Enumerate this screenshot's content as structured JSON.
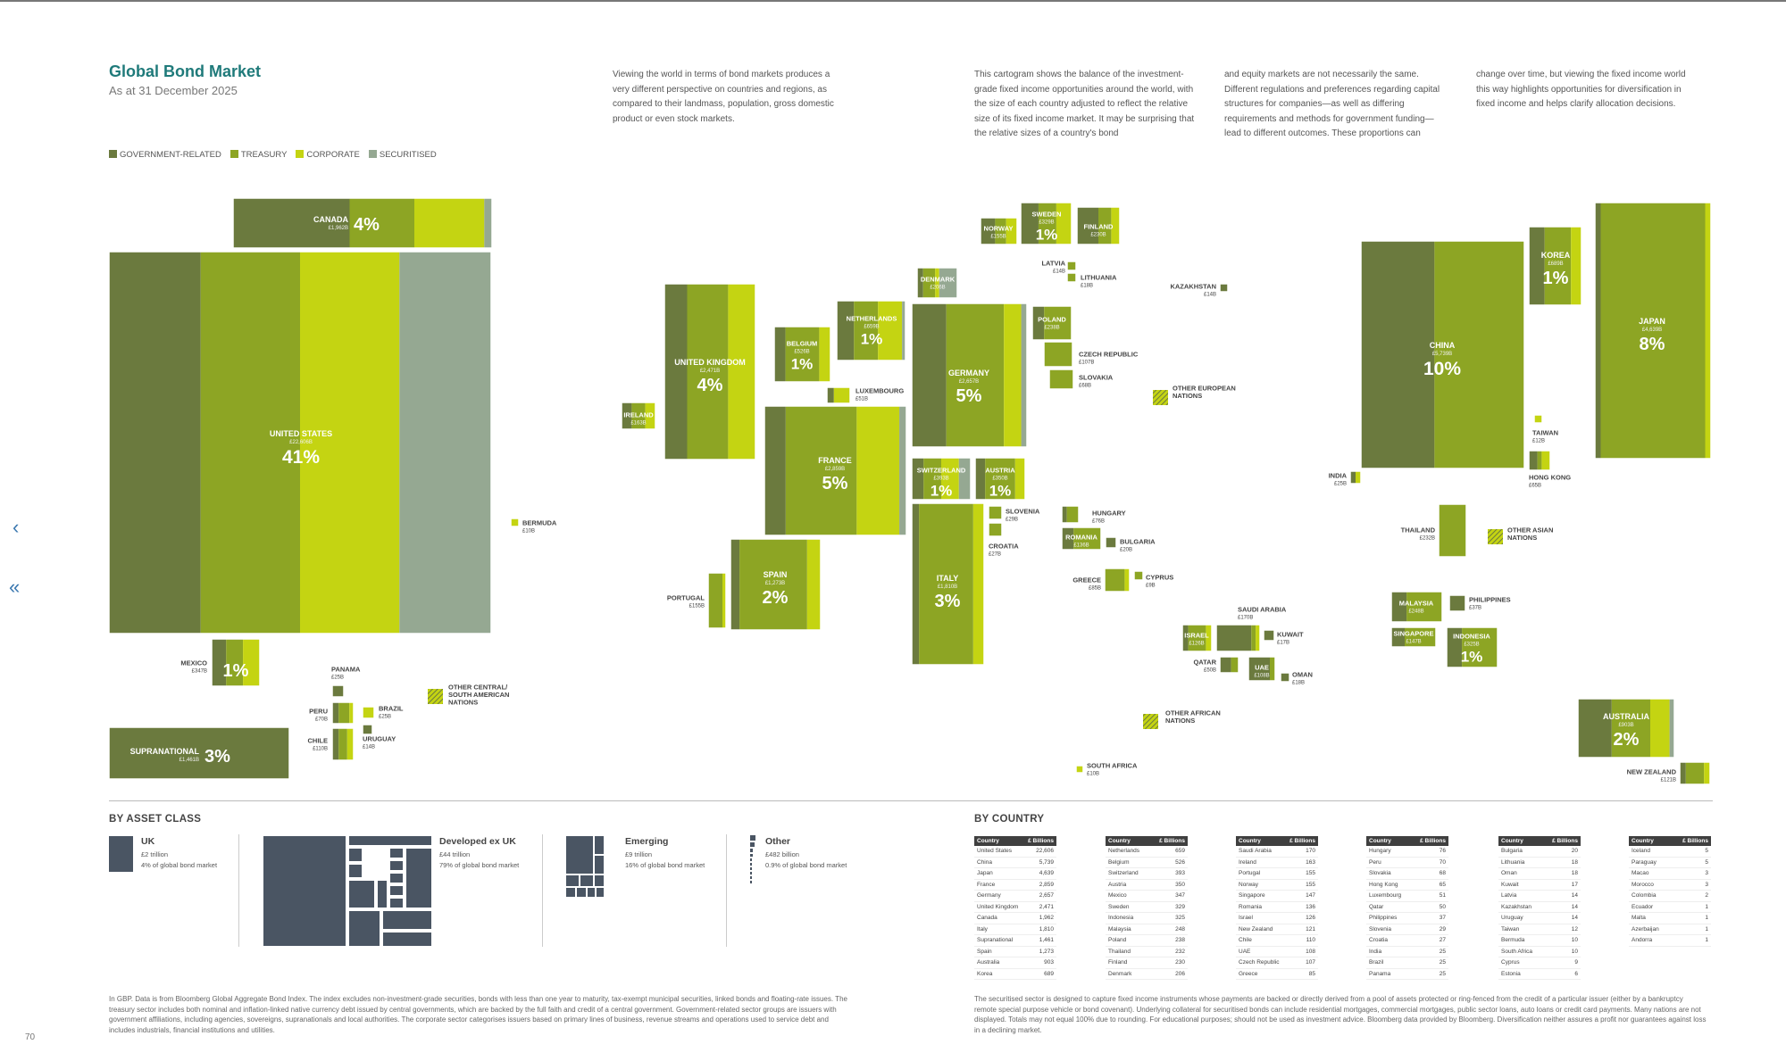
{
  "page": {
    "title": "Global Bond Market",
    "subtitle": "As at 31 December 2025",
    "intro": [
      "Viewing the world in terms of bond markets produces a very different perspective on countries and regions, as compared to their landmass, population, gross domestic product or even stock markets.",
      "This cartogram shows the balance of the investment-grade fixed income opportunities around the world, with the size of each country adjusted to reflect the relative size of its fixed income market. It may be surprising that the relative sizes of a country's bond",
      "and equity markets are not necessarily the same. Different regulations and preferences regarding capital structures for companies—as well as differing requirements and methods for government funding—lead to different outcomes. These proportions can",
      "change over time, but viewing the fixed income world this way highlights opportunities for diversification in fixed income and helps clarify allocation decisions."
    ],
    "legend": [
      {
        "label": "GOVERNMENT-RELATED",
        "color": "#6b7a3e"
      },
      {
        "label": "TREASURY",
        "color": "#8da524"
      },
      {
        "label": "CORPORATE",
        "color": "#c4d412"
      },
      {
        "label": "SECURITISED",
        "color": "#95a892"
      }
    ],
    "by_asset_class_heading": "BY ASSET CLASS",
    "by_country_heading": "BY COUNTRY",
    "page_number": "70",
    "footnote_left": "In GBP. Data is from Bloomberg Global Aggregate Bond Index. The index excludes non-investment-grade securities, bonds with less than one year to maturity, tax-exempt municipal securities, linked bonds and floating-rate issues. The treasury sector includes both nominal and inflation-linked native currency debt issued by central governments, which are backed by the full faith and credit of a central government. Government-related sector groups are issuers with government affiliations, including agencies, sovereigns, supranationals and local authorities. The corporate sector categorises issuers based on primary lines of business, revenue streams and operations used to service debt and includes industrials, financial institutions and utilities.",
    "footnote_right": "The securitised sector is designed to capture fixed income instruments whose payments are backed or directly derived from a pool of assets protected or ring-fenced from the credit of a particular issuer (either by a bankruptcy remote special purpose vehicle or bond covenant). Underlying collateral for securitised bonds can include residential mortgages, commercial mortgages, public sector loans, auto loans or credit card payments. Many nations are not displayed. Totals may not equal 100% due to rounding. For educational purposes; should not be used as investment advice. Bloomberg data provided by Bloomberg. Diversification neither assures a profit nor guarantees against loss in a declining market."
  },
  "asset_classes": [
    {
      "name": "UK",
      "lines": [
        "£2 trillion",
        "4% of global bond market"
      ]
    },
    {
      "name": "Developed ex UK",
      "lines": [
        "£44 trillion",
        "79% of global bond market"
      ]
    },
    {
      "name": "Emerging",
      "lines": [
        "£9 trillion",
        "16% of global bond market"
      ]
    },
    {
      "name": "Other",
      "lines": [
        "£482 billion",
        "0.9% of global bond market"
      ]
    }
  ],
  "table_headers": {
    "country": "Country",
    "value": "£ Billions"
  },
  "country_tables": [
    [
      [
        "United States",
        "22,606"
      ],
      [
        "China",
        "5,739"
      ],
      [
        "Japan",
        "4,639"
      ],
      [
        "France",
        "2,859"
      ],
      [
        "Germany",
        "2,657"
      ],
      [
        "United Kingdom",
        "2,471"
      ],
      [
        "Canada",
        "1,962"
      ],
      [
        "Italy",
        "1,810"
      ],
      [
        "Supranational",
        "1,461"
      ],
      [
        "Spain",
        "1,273"
      ],
      [
        "Australia",
        "903"
      ],
      [
        "Korea",
        "689"
      ]
    ],
    [
      [
        "Netherlands",
        "659"
      ],
      [
        "Belgium",
        "526"
      ],
      [
        "Switzerland",
        "393"
      ],
      [
        "Austria",
        "350"
      ],
      [
        "Mexico",
        "347"
      ],
      [
        "Sweden",
        "329"
      ],
      [
        "Indonesia",
        "325"
      ],
      [
        "Malaysia",
        "248"
      ],
      [
        "Poland",
        "238"
      ],
      [
        "Thailand",
        "232"
      ],
      [
        "Finland",
        "230"
      ],
      [
        "Denmark",
        "206"
      ]
    ],
    [
      [
        "Saudi Arabia",
        "170"
      ],
      [
        "Ireland",
        "163"
      ],
      [
        "Portugal",
        "155"
      ],
      [
        "Norway",
        "155"
      ],
      [
        "Singapore",
        "147"
      ],
      [
        "Romania",
        "136"
      ],
      [
        "Israel",
        "126"
      ],
      [
        "New Zealand",
        "121"
      ],
      [
        "Chile",
        "110"
      ],
      [
        "UAE",
        "108"
      ],
      [
        "Czech Republic",
        "107"
      ],
      [
        "Greece",
        "85"
      ]
    ],
    [
      [
        "Hungary",
        "76"
      ],
      [
        "Peru",
        "70"
      ],
      [
        "Slovakia",
        "68"
      ],
      [
        "Hong Kong",
        "65"
      ],
      [
        "Luxembourg",
        "51"
      ],
      [
        "Qatar",
        "50"
      ],
      [
        "Philippines",
        "37"
      ],
      [
        "Slovenia",
        "29"
      ],
      [
        "Croatia",
        "27"
      ],
      [
        "India",
        "25"
      ],
      [
        "Brazil",
        "25"
      ],
      [
        "Panama",
        "25"
      ]
    ],
    [
      [
        "Bulgaria",
        "20"
      ],
      [
        "Lithuania",
        "18"
      ],
      [
        "Oman",
        "18"
      ],
      [
        "Kuwait",
        "17"
      ],
      [
        "Latvia",
        "14"
      ],
      [
        "Kazakhstan",
        "14"
      ],
      [
        "Uruguay",
        "14"
      ],
      [
        "Taiwan",
        "12"
      ],
      [
        "Bermuda",
        "10"
      ],
      [
        "South Africa",
        "10"
      ],
      [
        "Cyprus",
        "9"
      ],
      [
        "Estonia",
        "6"
      ]
    ],
    [
      [
        "Iceland",
        "5"
      ],
      [
        "Paraguay",
        "5"
      ],
      [
        "Macao",
        "3"
      ],
      [
        "Morocco",
        "3"
      ],
      [
        "Colombia",
        "2"
      ],
      [
        "Ecuador",
        "1"
      ],
      [
        "Malta",
        "1"
      ],
      [
        "Azerbaijan",
        "1"
      ],
      [
        "Andorra",
        "1"
      ]
    ]
  ],
  "chart_data": {
    "type": "treemap-cartogram",
    "unit": "£ billions",
    "legend": [
      "GOVERNMENT-RELATED",
      "TREASURY",
      "CORPORATE",
      "SECURITISED"
    ],
    "countries": [
      {
        "name": "UNITED STATES",
        "value_label": "£22,606B",
        "pct": "41%",
        "composition": [
          0.24,
          0.26,
          0.26,
          0.24
        ]
      },
      {
        "name": "CANADA",
        "value_label": "£1,962B",
        "pct": "4%",
        "composition": [
          0.45,
          0.25,
          0.27,
          0.03
        ]
      },
      {
        "name": "MEXICO",
        "value_label": "£347B",
        "pct": "1%",
        "composition": [
          0.3,
          0.35,
          0.35,
          0
        ]
      },
      {
        "name": "SUPRANATIONAL",
        "value_label": "£1,461B",
        "pct": "3%",
        "composition": [
          1,
          0,
          0,
          0
        ]
      },
      {
        "name": "BERMUDA",
        "value_label": "£10B",
        "pct": "",
        "composition": [
          0,
          0,
          1,
          0
        ]
      },
      {
        "name": "PANAMA",
        "value_label": "£25B",
        "pct": "",
        "composition": [
          1,
          0,
          0,
          0
        ]
      },
      {
        "name": "PERU",
        "value_label": "£70B",
        "pct": "",
        "composition": [
          0.3,
          0.5,
          0.2,
          0
        ]
      },
      {
        "name": "BRAZIL",
        "value_label": "£25B",
        "pct": "",
        "composition": [
          0,
          0,
          1,
          0
        ]
      },
      {
        "name": "CHILE",
        "value_label": "£110B",
        "pct": "",
        "composition": [
          0.3,
          0.4,
          0.3,
          0
        ]
      },
      {
        "name": "URUGUAY",
        "value_label": "£14B",
        "pct": "",
        "composition": [
          1,
          0,
          0,
          0
        ]
      },
      {
        "name": "OTHER CENTRAL/ SOUTH AMERICAN NATIONS",
        "value_label": "",
        "pct": "",
        "composition": []
      },
      {
        "name": "UNITED KINGDOM",
        "value_label": "£2,471B",
        "pct": "4%",
        "composition": [
          0.25,
          0.45,
          0.3,
          0
        ]
      },
      {
        "name": "IRELAND",
        "value_label": "£163B",
        "pct": "",
        "composition": [
          0.3,
          0.4,
          0.3,
          0
        ]
      },
      {
        "name": "BELGIUM",
        "value_label": "£526B",
        "pct": "1%",
        "composition": [
          0.2,
          0.6,
          0.2,
          0
        ]
      },
      {
        "name": "NETHERLANDS",
        "value_label": "£659B",
        "pct": "1%",
        "composition": [
          0.25,
          0.35,
          0.35,
          0.05
        ]
      },
      {
        "name": "LUXEMBOURG",
        "value_label": "£51B",
        "pct": "",
        "composition": [
          0.3,
          0,
          0.7,
          0
        ]
      },
      {
        "name": "FRANCE",
        "value_label": "£2,859B",
        "pct": "5%",
        "composition": [
          0.15,
          0.5,
          0.3,
          0.05
        ]
      },
      {
        "name": "SPAIN",
        "value_label": "£1,273B",
        "pct": "2%",
        "composition": [
          0.1,
          0.75,
          0.15,
          0
        ]
      },
      {
        "name": "PORTUGAL",
        "value_label": "£155B",
        "pct": "",
        "composition": [
          0,
          0.8,
          0.2,
          0
        ]
      },
      {
        "name": "DENMARK",
        "value_label": "£206B",
        "pct": "",
        "composition": [
          0.15,
          0.3,
          0.1,
          0.45
        ]
      },
      {
        "name": "NORWAY",
        "value_label": "£155B",
        "pct": "",
        "composition": [
          0.4,
          0.3,
          0.3,
          0
        ]
      },
      {
        "name": "SWEDEN",
        "value_label": "£329B",
        "pct": "1%",
        "composition": [
          0.35,
          0.35,
          0.3,
          0
        ]
      },
      {
        "name": "FINLAND",
        "value_label": "£230B",
        "pct": "",
        "composition": [
          0.5,
          0.3,
          0.2,
          0
        ]
      },
      {
        "name": "GERMANY",
        "value_label": "£2,657B",
        "pct": "5%",
        "composition": [
          0.3,
          0.5,
          0.15,
          0.05
        ]
      },
      {
        "name": "SWITZERLAND",
        "value_label": "£393B",
        "pct": "1%",
        "composition": [
          0.2,
          0.3,
          0.3,
          0.2
        ]
      },
      {
        "name": "AUSTRIA",
        "value_label": "£350B",
        "pct": "1%",
        "composition": [
          0.2,
          0.6,
          0.2,
          0
        ]
      },
      {
        "name": "ITALY",
        "value_label": "£1,810B",
        "pct": "3%",
        "composition": [
          0.1,
          0.75,
          0.15,
          0
        ]
      },
      {
        "name": "LATVIA",
        "value_label": "£14B",
        "pct": "",
        "composition": [
          0,
          1,
          0,
          0
        ]
      },
      {
        "name": "LITHUANIA",
        "value_label": "£18B",
        "pct": "",
        "composition": [
          0,
          1,
          0,
          0
        ]
      },
      {
        "name": "POLAND",
        "value_label": "£238B",
        "pct": "",
        "composition": [
          0.3,
          0.7,
          0,
          0
        ]
      },
      {
        "name": "CZECH REPUBLIC",
        "value_label": "£107B",
        "pct": "",
        "composition": [
          0,
          1,
          0,
          0
        ]
      },
      {
        "name": "SLOVAKIA",
        "value_label": "£68B",
        "pct": "",
        "composition": [
          0,
          1,
          0,
          0
        ]
      },
      {
        "name": "SLOVENIA",
        "value_label": "£29B",
        "pct": "",
        "composition": [
          0,
          1,
          0,
          0
        ]
      },
      {
        "name": "CROATIA",
        "value_label": "£27B",
        "pct": "",
        "composition": [
          0,
          1,
          0,
          0
        ]
      },
      {
        "name": "HUNGARY",
        "value_label": "£76B",
        "pct": "",
        "composition": [
          0.3,
          0.7,
          0,
          0
        ]
      },
      {
        "name": "ROMANIA",
        "value_label": "£136B",
        "pct": "",
        "composition": [
          0.3,
          0.7,
          0,
          0
        ]
      },
      {
        "name": "BULGARIA",
        "value_label": "£20B",
        "pct": "",
        "composition": [
          1,
          0,
          0,
          0
        ]
      },
      {
        "name": "GREECE",
        "value_label": "£85B",
        "pct": "",
        "composition": [
          0,
          0.8,
          0.2,
          0
        ]
      },
      {
        "name": "CYPRUS",
        "value_label": "£9B",
        "pct": "",
        "composition": [
          0,
          1,
          0,
          0
        ]
      },
      {
        "name": "KAZAKHSTAN",
        "value_label": "£14B",
        "pct": "",
        "composition": [
          1,
          0,
          0,
          0
        ]
      },
      {
        "name": "OTHER EUROPEAN NATIONS",
        "value_label": "",
        "pct": "",
        "composition": []
      },
      {
        "name": "SAUDI ARABIA",
        "value_label": "£170B",
        "pct": "",
        "composition": [
          0.8,
          0.1,
          0.1,
          0
        ]
      },
      {
        "name": "ISRAEL",
        "value_label": "£126B",
        "pct": "",
        "composition": [
          0.2,
          0.6,
          0.2,
          0
        ]
      },
      {
        "name": "KUWAIT",
        "value_label": "£17B",
        "pct": "",
        "composition": [
          1,
          0,
          0,
          0
        ]
      },
      {
        "name": "QATAR",
        "value_label": "£50B",
        "pct": "",
        "composition": [
          0.6,
          0.4,
          0,
          0
        ]
      },
      {
        "name": "UAE",
        "value_label": "£108B",
        "pct": "",
        "composition": [
          0.8,
          0.2,
          0,
          0
        ]
      },
      {
        "name": "OMAN",
        "value_label": "£18B",
        "pct": "",
        "composition": [
          1,
          0,
          0,
          0
        ]
      },
      {
        "name": "OTHER AFRICAN NATIONS",
        "value_label": "",
        "pct": "",
        "composition": []
      },
      {
        "name": "SOUTH AFRICA",
        "value_label": "£10B",
        "pct": "",
        "composition": [
          0,
          0,
          1,
          0
        ]
      },
      {
        "name": "CHINA",
        "value_label": "£5,739B",
        "pct": "10%",
        "composition": [
          0.45,
          0.55,
          0,
          0
        ]
      },
      {
        "name": "KOREA",
        "value_label": "£689B",
        "pct": "1%",
        "composition": [
          0.3,
          0.5,
          0.2,
          0
        ]
      },
      {
        "name": "JAPAN",
        "value_label": "£4,639B",
        "pct": "8%",
        "composition": [
          0.05,
          0.9,
          0.05,
          0
        ]
      },
      {
        "name": "TAIWAN",
        "value_label": "£12B",
        "pct": "",
        "composition": [
          0,
          0,
          1,
          0
        ]
      },
      {
        "name": "HONG KONG",
        "value_label": "£65B",
        "pct": "",
        "composition": [
          0.4,
          0.2,
          0.4,
          0
        ]
      },
      {
        "name": "INDIA",
        "value_label": "£25B",
        "pct": "",
        "composition": [
          0.5,
          0,
          0.5,
          0
        ]
      },
      {
        "name": "THAILAND",
        "value_label": "£232B",
        "pct": "",
        "composition": [
          0,
          1,
          0,
          0
        ]
      },
      {
        "name": "OTHER ASIAN NATIONS",
        "value_label": "",
        "pct": "",
        "composition": []
      },
      {
        "name": "MALAYSIA",
        "value_label": "£248B",
        "pct": "",
        "composition": [
          0.3,
          0.7,
          0,
          0
        ]
      },
      {
        "name": "PHILIPPINES",
        "value_label": "£37B",
        "pct": "",
        "composition": [
          1,
          0,
          0,
          0
        ]
      },
      {
        "name": "SINGAPORE",
        "value_label": "£147B",
        "pct": "",
        "composition": [
          0.3,
          0.7,
          0,
          0
        ]
      },
      {
        "name": "INDONESIA",
        "value_label": "£325B",
        "pct": "1%",
        "composition": [
          0.3,
          0.7,
          0,
          0
        ]
      },
      {
        "name": "AUSTRALIA",
        "value_label": "£903B",
        "pct": "2%",
        "composition": [
          0.35,
          0.4,
          0.2,
          0.05
        ]
      },
      {
        "name": "NEW ZEALAND",
        "value_label": "£121B",
        "pct": "",
        "composition": [
          0.2,
          0.6,
          0.2,
          0
        ]
      }
    ]
  }
}
